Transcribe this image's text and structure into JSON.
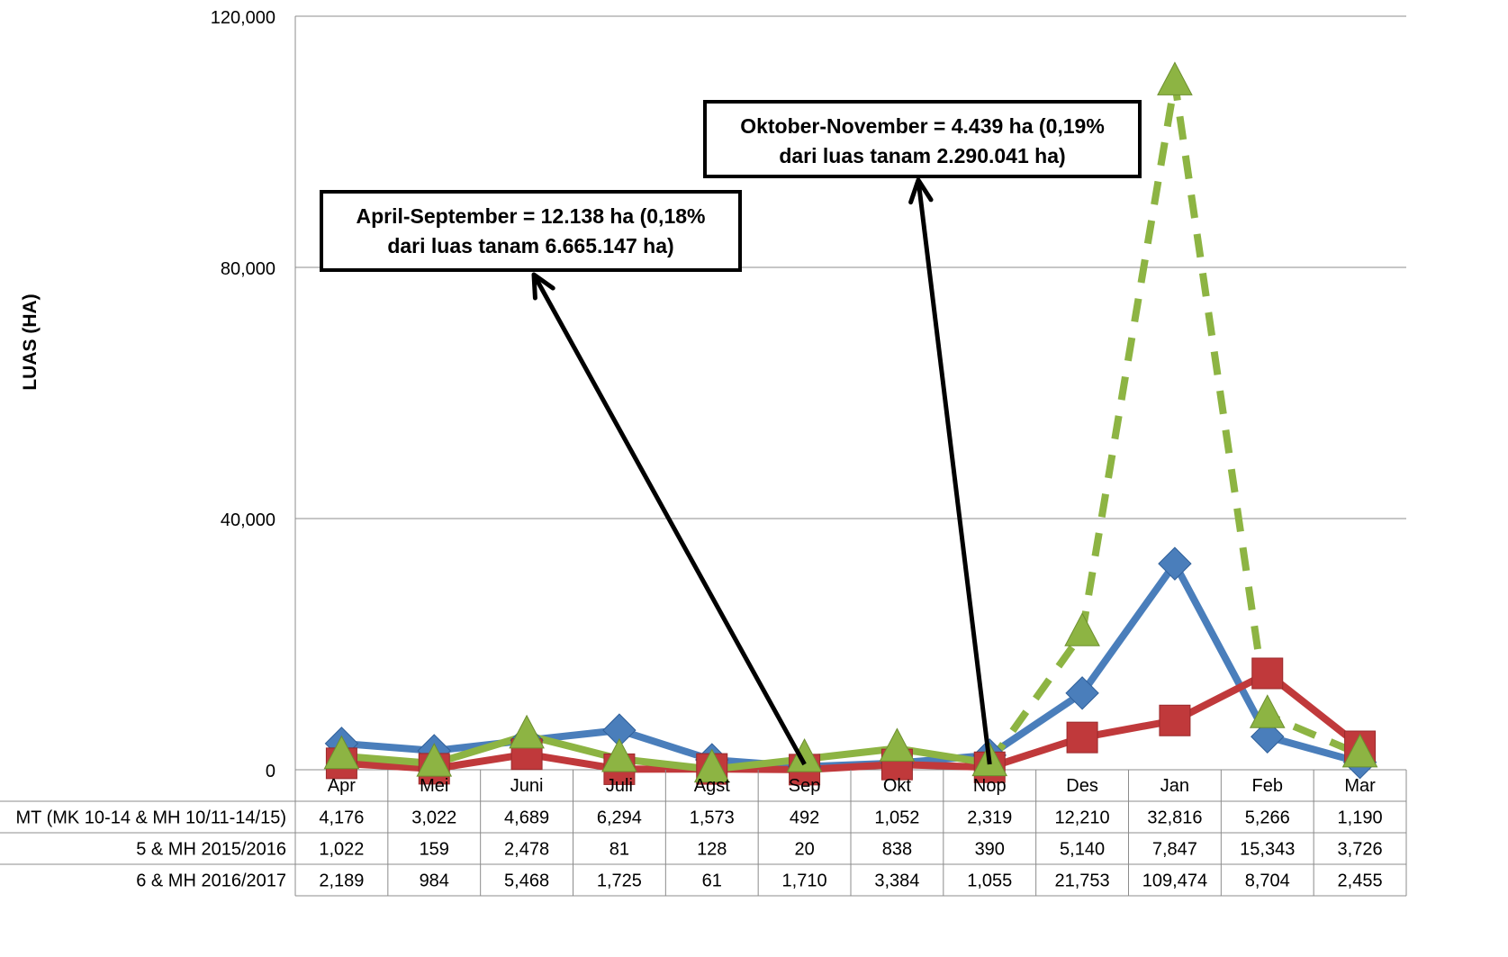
{
  "chart_data": {
    "type": "line",
    "title": "",
    "xlabel": "",
    "ylabel": "LUAS (HA)",
    "ylim": [
      0,
      120000
    ],
    "yticks": [
      0,
      40000,
      80000,
      120000
    ],
    "ytick_labels": [
      "0",
      "40,000",
      "80,000",
      "120,000"
    ],
    "grid": true,
    "categories": [
      "Apr",
      "Mei",
      "Juni",
      "Juli",
      "Agst",
      "Sep",
      "Okt",
      "Nop",
      "Des",
      "Jan",
      "Feb",
      "Mar"
    ],
    "series": [
      {
        "name": "MT (MK 10-14 & MH 10/11-14/15)",
        "color": "#4a7ebb",
        "marker": "diamond",
        "style": "solid",
        "values": [
          4176,
          3022,
          4689,
          6294,
          1573,
          492,
          1052,
          2319,
          12210,
          32816,
          5266,
          1190
        ],
        "labels": [
          "4,176",
          "3,022",
          "4,689",
          "6,294",
          "1,573",
          "492",
          "1,052",
          "2,319",
          "12,210",
          "32,816",
          "5,266",
          "1,190"
        ]
      },
      {
        "name": "5 & MH 2015/2016",
        "color": "#c0393b",
        "marker": "square",
        "style": "solid",
        "values": [
          1022,
          159,
          2478,
          81,
          128,
          20,
          838,
          390,
          5140,
          7847,
          15343,
          3726
        ],
        "labels": [
          "1,022",
          "159",
          "2,478",
          "81",
          "128",
          "20",
          "838",
          "390",
          "5,140",
          "7,847",
          "15,343",
          "3,726"
        ]
      },
      {
        "name": "6 & MH 2016/2017",
        "color": "#8db443",
        "marker": "triangle",
        "style": "solid-then-dashed",
        "dashed_from_index": 7,
        "values": [
          2189,
          984,
          5468,
          1725,
          61,
          1710,
          3384,
          1055,
          21753,
          109474,
          8704,
          2455
        ],
        "labels": [
          "2,189",
          "984",
          "5,468",
          "1,725",
          "61",
          "1,710",
          "3,384",
          "1,055",
          "21,753",
          "109,474",
          "8,704",
          "2,455"
        ]
      }
    ],
    "annotations": [
      {
        "lines": [
          "April-September = 12.138 ha (0,18%",
          "dari luas tanam 6.665.147 ha)"
        ],
        "arrow_to_category": "Sep"
      },
      {
        "lines": [
          "Oktober-November = 4.439 ha (0,19%",
          "dari luas tanam 2.290.041 ha)"
        ],
        "arrow_to_category": "Nop"
      }
    ],
    "data_table": true
  }
}
